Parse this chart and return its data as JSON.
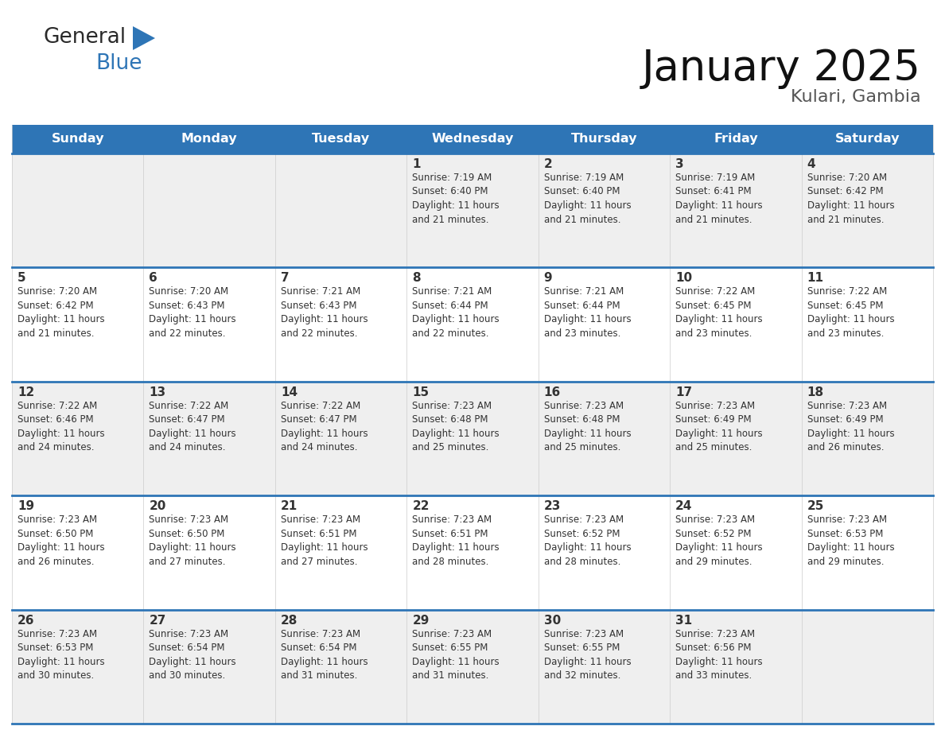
{
  "title": "January 2025",
  "subtitle": "Kulari, Gambia",
  "header_color": "#2E75B6",
  "header_text_color": "#FFFFFF",
  "cell_bg_white": "#FFFFFF",
  "cell_bg_gray": "#EFEFEF",
  "border_color": "#2E75B6",
  "cell_border_color": "#CCCCCC",
  "text_color": "#333333",
  "days_of_week": [
    "Sunday",
    "Monday",
    "Tuesday",
    "Wednesday",
    "Thursday",
    "Friday",
    "Saturday"
  ],
  "calendar_data": [
    [
      {
        "day": "",
        "info": ""
      },
      {
        "day": "",
        "info": ""
      },
      {
        "day": "",
        "info": ""
      },
      {
        "day": "1",
        "info": "Sunrise: 7:19 AM\nSunset: 6:40 PM\nDaylight: 11 hours\nand 21 minutes."
      },
      {
        "day": "2",
        "info": "Sunrise: 7:19 AM\nSunset: 6:40 PM\nDaylight: 11 hours\nand 21 minutes."
      },
      {
        "day": "3",
        "info": "Sunrise: 7:19 AM\nSunset: 6:41 PM\nDaylight: 11 hours\nand 21 minutes."
      },
      {
        "day": "4",
        "info": "Sunrise: 7:20 AM\nSunset: 6:42 PM\nDaylight: 11 hours\nand 21 minutes."
      }
    ],
    [
      {
        "day": "5",
        "info": "Sunrise: 7:20 AM\nSunset: 6:42 PM\nDaylight: 11 hours\nand 21 minutes."
      },
      {
        "day": "6",
        "info": "Sunrise: 7:20 AM\nSunset: 6:43 PM\nDaylight: 11 hours\nand 22 minutes."
      },
      {
        "day": "7",
        "info": "Sunrise: 7:21 AM\nSunset: 6:43 PM\nDaylight: 11 hours\nand 22 minutes."
      },
      {
        "day": "8",
        "info": "Sunrise: 7:21 AM\nSunset: 6:44 PM\nDaylight: 11 hours\nand 22 minutes."
      },
      {
        "day": "9",
        "info": "Sunrise: 7:21 AM\nSunset: 6:44 PM\nDaylight: 11 hours\nand 23 minutes."
      },
      {
        "day": "10",
        "info": "Sunrise: 7:22 AM\nSunset: 6:45 PM\nDaylight: 11 hours\nand 23 minutes."
      },
      {
        "day": "11",
        "info": "Sunrise: 7:22 AM\nSunset: 6:45 PM\nDaylight: 11 hours\nand 23 minutes."
      }
    ],
    [
      {
        "day": "12",
        "info": "Sunrise: 7:22 AM\nSunset: 6:46 PM\nDaylight: 11 hours\nand 24 minutes."
      },
      {
        "day": "13",
        "info": "Sunrise: 7:22 AM\nSunset: 6:47 PM\nDaylight: 11 hours\nand 24 minutes."
      },
      {
        "day": "14",
        "info": "Sunrise: 7:22 AM\nSunset: 6:47 PM\nDaylight: 11 hours\nand 24 minutes."
      },
      {
        "day": "15",
        "info": "Sunrise: 7:23 AM\nSunset: 6:48 PM\nDaylight: 11 hours\nand 25 minutes."
      },
      {
        "day": "16",
        "info": "Sunrise: 7:23 AM\nSunset: 6:48 PM\nDaylight: 11 hours\nand 25 minutes."
      },
      {
        "day": "17",
        "info": "Sunrise: 7:23 AM\nSunset: 6:49 PM\nDaylight: 11 hours\nand 25 minutes."
      },
      {
        "day": "18",
        "info": "Sunrise: 7:23 AM\nSunset: 6:49 PM\nDaylight: 11 hours\nand 26 minutes."
      }
    ],
    [
      {
        "day": "19",
        "info": "Sunrise: 7:23 AM\nSunset: 6:50 PM\nDaylight: 11 hours\nand 26 minutes."
      },
      {
        "day": "20",
        "info": "Sunrise: 7:23 AM\nSunset: 6:50 PM\nDaylight: 11 hours\nand 27 minutes."
      },
      {
        "day": "21",
        "info": "Sunrise: 7:23 AM\nSunset: 6:51 PM\nDaylight: 11 hours\nand 27 minutes."
      },
      {
        "day": "22",
        "info": "Sunrise: 7:23 AM\nSunset: 6:51 PM\nDaylight: 11 hours\nand 28 minutes."
      },
      {
        "day": "23",
        "info": "Sunrise: 7:23 AM\nSunset: 6:52 PM\nDaylight: 11 hours\nand 28 minutes."
      },
      {
        "day": "24",
        "info": "Sunrise: 7:23 AM\nSunset: 6:52 PM\nDaylight: 11 hours\nand 29 minutes."
      },
      {
        "day": "25",
        "info": "Sunrise: 7:23 AM\nSunset: 6:53 PM\nDaylight: 11 hours\nand 29 minutes."
      }
    ],
    [
      {
        "day": "26",
        "info": "Sunrise: 7:23 AM\nSunset: 6:53 PM\nDaylight: 11 hours\nand 30 minutes."
      },
      {
        "day": "27",
        "info": "Sunrise: 7:23 AM\nSunset: 6:54 PM\nDaylight: 11 hours\nand 30 minutes."
      },
      {
        "day": "28",
        "info": "Sunrise: 7:23 AM\nSunset: 6:54 PM\nDaylight: 11 hours\nand 31 minutes."
      },
      {
        "day": "29",
        "info": "Sunrise: 7:23 AM\nSunset: 6:55 PM\nDaylight: 11 hours\nand 31 minutes."
      },
      {
        "day": "30",
        "info": "Sunrise: 7:23 AM\nSunset: 6:55 PM\nDaylight: 11 hours\nand 32 minutes."
      },
      {
        "day": "31",
        "info": "Sunrise: 7:23 AM\nSunset: 6:56 PM\nDaylight: 11 hours\nand 33 minutes."
      },
      {
        "day": "",
        "info": ""
      }
    ]
  ],
  "logo_general_color": "#2a2a2a",
  "logo_blue_color": "#2E75B6",
  "logo_triangle_color": "#2E75B6",
  "row_bg_colors": [
    "#EFEFEF",
    "#FFFFFF",
    "#EFEFEF",
    "#FFFFFF",
    "#EFEFEF"
  ]
}
